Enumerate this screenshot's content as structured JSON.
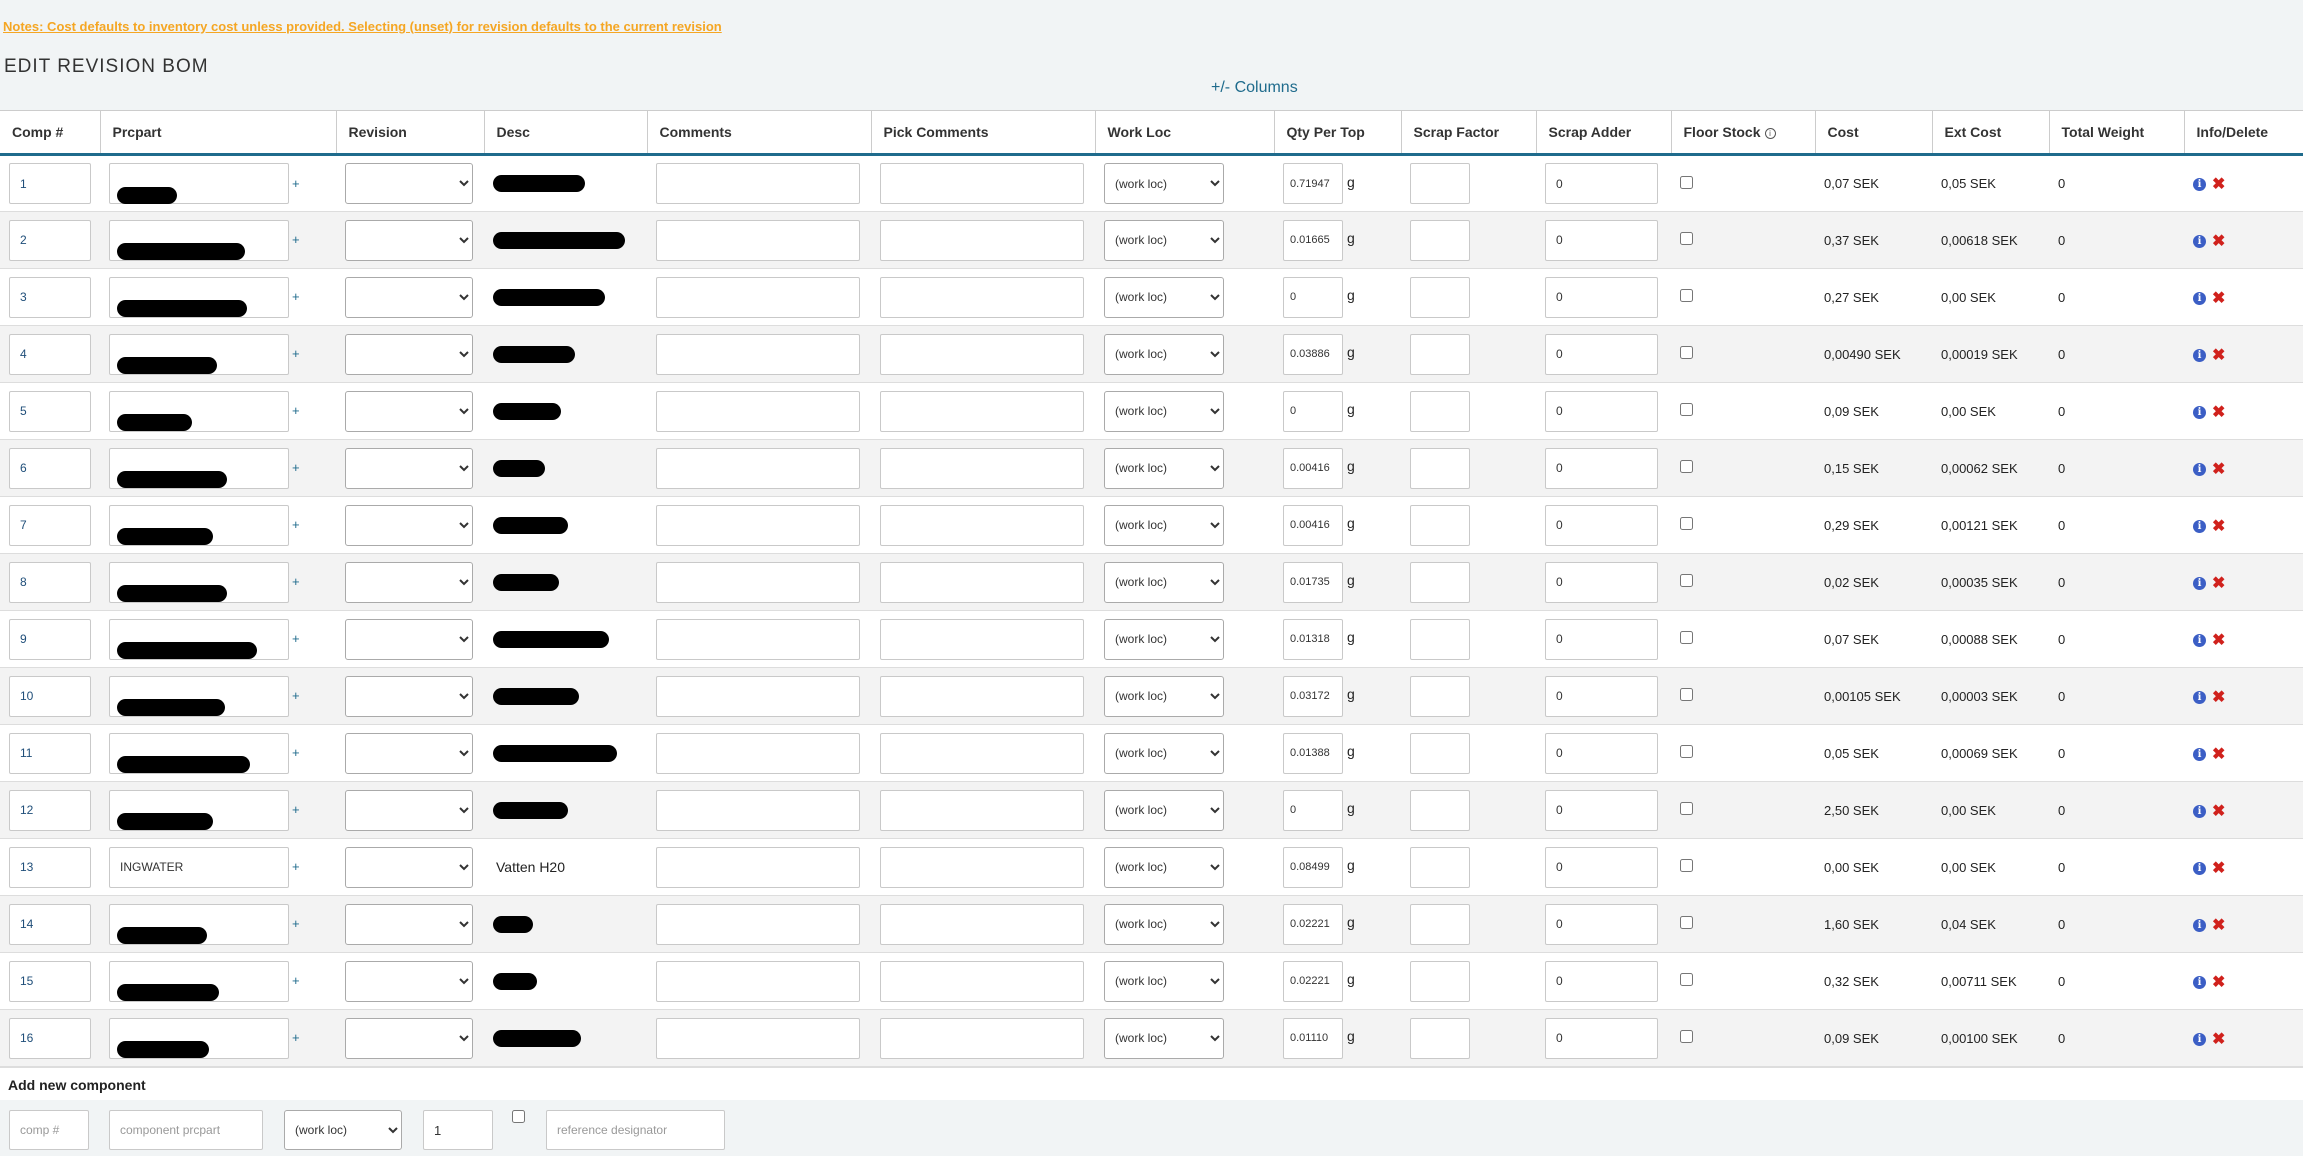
{
  "notes": "Notes: Cost defaults to inventory cost unless provided. Selecting (unset) for revision defaults to the current revision",
  "page_title": "EDIT REVISION BOM",
  "columns_toggle": "+/- Columns",
  "headers": {
    "comp": "Comp #",
    "prcpart": "Prcpart",
    "revision": "Revision",
    "desc": "Desc",
    "comments": "Comments",
    "pick_comments": "Pick Comments",
    "work_loc": "Work Loc",
    "qty_per_top": "Qty Per Top",
    "scrap_factor": "Scrap Factor",
    "scrap_adder": "Scrap Adder",
    "floor_stock": "Floor Stock",
    "cost": "Cost",
    "ext_cost": "Ext Cost",
    "total_weight": "Total Weight",
    "info_delete": "Info/Delete"
  },
  "plus_symbol": "+",
  "work_loc_default": "(work loc)",
  "unit": "g",
  "rows": [
    {
      "comp": "1",
      "prcpart": "",
      "desc": "",
      "qty": "0.71947",
      "adder": "0",
      "cost": "0,07 SEK",
      "ext": "0,05 SEK",
      "weight": "0"
    },
    {
      "comp": "2",
      "prcpart": "",
      "desc": "",
      "qty": "0.01665",
      "adder": "0",
      "cost": "0,37 SEK",
      "ext": "0,00618 SEK",
      "weight": "0"
    },
    {
      "comp": "3",
      "prcpart": "",
      "desc": "",
      "qty": "0",
      "adder": "0",
      "cost": "0,27 SEK",
      "ext": "0,00 SEK",
      "weight": "0"
    },
    {
      "comp": "4",
      "prcpart": "",
      "desc": "",
      "qty": "0.03886",
      "adder": "0",
      "cost": "0,00490 SEK",
      "ext": "0,00019 SEK",
      "weight": "0"
    },
    {
      "comp": "5",
      "prcpart": "",
      "desc": "",
      "qty": "0",
      "adder": "0",
      "cost": "0,09 SEK",
      "ext": "0,00 SEK",
      "weight": "0"
    },
    {
      "comp": "6",
      "prcpart": "",
      "desc": "",
      "qty": "0.00416",
      "adder": "0",
      "cost": "0,15 SEK",
      "ext": "0,00062 SEK",
      "weight": "0"
    },
    {
      "comp": "7",
      "prcpart": "",
      "desc": "",
      "qty": "0.00416",
      "adder": "0",
      "cost": "0,29 SEK",
      "ext": "0,00121 SEK",
      "weight": "0"
    },
    {
      "comp": "8",
      "prcpart": "",
      "desc": "",
      "qty": "0.01735",
      "adder": "0",
      "cost": "0,02 SEK",
      "ext": "0,00035 SEK",
      "weight": "0"
    },
    {
      "comp": "9",
      "prcpart": "",
      "desc": "",
      "qty": "0.01318",
      "adder": "0",
      "cost": "0,07 SEK",
      "ext": "0,00088 SEK",
      "weight": "0"
    },
    {
      "comp": "10",
      "prcpart": "",
      "desc": "",
      "qty": "0.03172",
      "adder": "0",
      "cost": "0,00105 SEK",
      "ext": "0,00003 SEK",
      "weight": "0"
    },
    {
      "comp": "11",
      "prcpart": "",
      "desc": "",
      "qty": "0.01388",
      "adder": "0",
      "cost": "0,05 SEK",
      "ext": "0,00069 SEK",
      "weight": "0"
    },
    {
      "comp": "12",
      "prcpart": "",
      "desc": "",
      "qty": "0",
      "adder": "0",
      "cost": "2,50 SEK",
      "ext": "0,00 SEK",
      "weight": "0"
    },
    {
      "comp": "13",
      "prcpart": "INGWATER",
      "desc": "Vatten H20",
      "qty": "0.08499",
      "adder": "0",
      "cost": "0,00 SEK",
      "ext": "0,00 SEK",
      "weight": "0"
    },
    {
      "comp": "14",
      "prcpart": "",
      "desc": "",
      "qty": "0.02221",
      "adder": "0",
      "cost": "1,60 SEK",
      "ext": "0,04 SEK",
      "weight": "0"
    },
    {
      "comp": "15",
      "prcpart": "",
      "desc": "",
      "qty": "0.02221",
      "adder": "0",
      "cost": "0,32 SEK",
      "ext": "0,00711 SEK",
      "weight": "0"
    },
    {
      "comp": "16",
      "prcpart": "",
      "desc": "",
      "qty": "0.01110",
      "adder": "0",
      "cost": "0,09 SEK",
      "ext": "0,00100 SEK",
      "weight": "0"
    }
  ],
  "add_new": {
    "title": "Add new component",
    "comp_placeholder": "comp #",
    "prcpart_placeholder": "component prcpart",
    "work_loc": "(work loc)",
    "qty_value": "1",
    "ref_placeholder": "reference designator"
  },
  "colors": {
    "accent": "#1f6b8c",
    "notes": "#f5a623",
    "delete": "#d0211c",
    "info": "#3b5ec5"
  }
}
